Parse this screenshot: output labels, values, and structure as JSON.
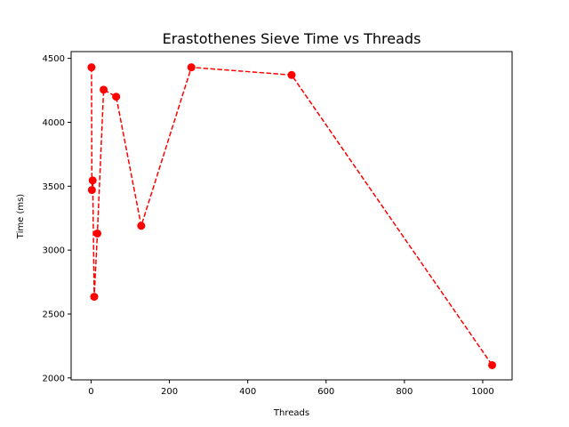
{
  "chart_data": {
    "type": "line",
    "title": "Erastothenes Sieve Time vs Threads",
    "xlabel": "Threads",
    "ylabel": "Time (ms)",
    "xlim": [
      -51,
      1075
    ],
    "ylim": [
      1985,
      4553
    ],
    "xticks": [
      0,
      200,
      400,
      600,
      800,
      1000
    ],
    "yticks": [
      2000,
      2500,
      3000,
      3500,
      4000,
      4500
    ],
    "grid": false,
    "series": [
      {
        "color": "#ff0000",
        "line_style": "dashed",
        "marker": "circle",
        "x": [
          1,
          2,
          4,
          8,
          16,
          32,
          64,
          128,
          256,
          512,
          1024
        ],
        "y": [
          4430,
          3470,
          3545,
          2635,
          3130,
          4255,
          4200,
          3190,
          4430,
          4370,
          2100
        ]
      }
    ]
  }
}
